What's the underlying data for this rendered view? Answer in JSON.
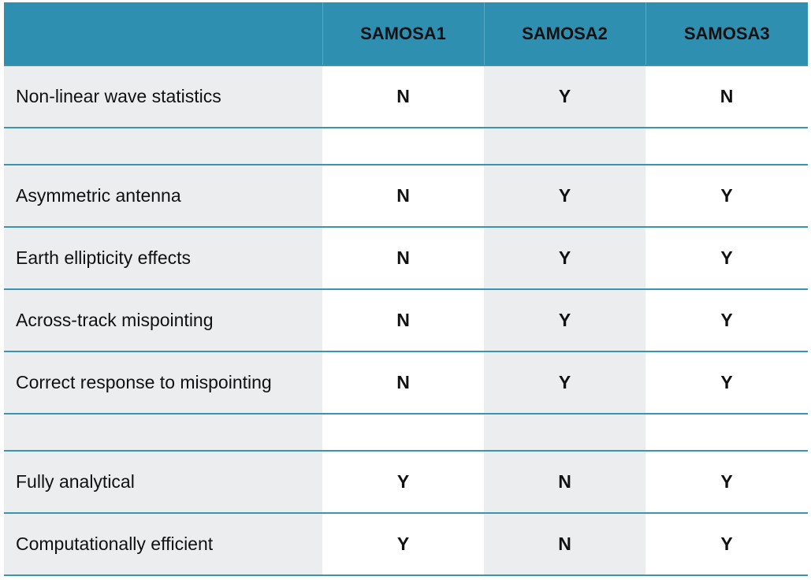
{
  "colors": {
    "header_bg": "#2e8fb0",
    "row_rule": "#3a94b4",
    "yes": "#e4261a",
    "no": "#111111",
    "grey_cell": "#ebedef"
  },
  "header": {
    "blank": "",
    "col1": "SAMOSA1",
    "col2": "SAMOSA2",
    "col3": "SAMOSA3"
  },
  "rows": [
    {
      "label": "Non-linear wave statistics",
      "v1": "N",
      "v2": "Y",
      "v3": "N"
    },
    {
      "label": "",
      "v1": "",
      "v2": "",
      "v3": ""
    },
    {
      "label": "Asymmetric antenna",
      "v1": "N",
      "v2": "Y",
      "v3": "Y"
    },
    {
      "label": "Earth ellipticity effects",
      "v1": "N",
      "v2": "Y",
      "v3": "Y"
    },
    {
      "label": "Across-track mispointing",
      "v1": "N",
      "v2": "Y",
      "v3": "Y"
    },
    {
      "label": "Correct response to mispointing",
      "v1": "N",
      "v2": "Y",
      "v3": "Y"
    },
    {
      "label": "",
      "v1": "",
      "v2": "",
      "v3": ""
    },
    {
      "label": "Fully analytical",
      "v1": "Y",
      "v2": "N",
      "v3": "Y"
    },
    {
      "label": "Computationally efficient",
      "v1": "Y",
      "v2": "N",
      "v3": "Y"
    }
  ]
}
